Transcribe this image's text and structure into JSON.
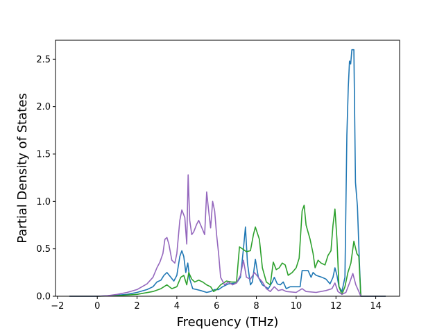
{
  "chart_data": {
    "type": "line",
    "title": "",
    "xlabel": "Frequency (THz)",
    "ylabel": "Partial Density of States",
    "xlim": [
      -2.1,
      15.2
    ],
    "ylim": [
      0,
      2.7
    ],
    "xticks": [
      -2,
      0,
      2,
      4,
      6,
      8,
      10,
      12,
      14
    ],
    "xtick_labels": [
      "−2",
      "0",
      "2",
      "4",
      "6",
      "8",
      "10",
      "12",
      "14"
    ],
    "yticks": [
      0,
      0.5,
      1.0,
      1.5,
      2.0,
      2.5
    ],
    "ytick_labels": [
      "0.0",
      "0.5",
      "1.0",
      "1.5",
      "2.0",
      "2.5"
    ],
    "grid": false,
    "legend": "none",
    "series": [
      {
        "color": "#1f77b4",
        "points": [
          [
            -1.4,
            0
          ],
          [
            -0.5,
            0
          ],
          [
            0,
            0
          ],
          [
            0.5,
            0.005
          ],
          [
            1,
            0.01
          ],
          [
            1.5,
            0.02
          ],
          [
            2,
            0.04
          ],
          [
            2.5,
            0.07
          ],
          [
            2.8,
            0.1
          ],
          [
            3,
            0.15
          ],
          [
            3.2,
            0.17
          ],
          [
            3.35,
            0.22
          ],
          [
            3.5,
            0.25
          ],
          [
            3.7,
            0.2
          ],
          [
            3.85,
            0.16
          ],
          [
            4,
            0.22
          ],
          [
            4.15,
            0.42
          ],
          [
            4.25,
            0.48
          ],
          [
            4.35,
            0.42
          ],
          [
            4.45,
            0.25
          ],
          [
            4.55,
            0.35
          ],
          [
            4.65,
            0.18
          ],
          [
            4.8,
            0.08
          ],
          [
            5,
            0.07
          ],
          [
            5.2,
            0.06
          ],
          [
            5.5,
            0.04
          ],
          [
            5.7,
            0.05
          ],
          [
            5.9,
            0.07
          ],
          [
            6.1,
            0.07
          ],
          [
            6.3,
            0.1
          ],
          [
            6.6,
            0.13
          ],
          [
            7,
            0.14
          ],
          [
            7.2,
            0.2
          ],
          [
            7.35,
            0.5
          ],
          [
            7.45,
            0.73
          ],
          [
            7.55,
            0.35
          ],
          [
            7.7,
            0.12
          ],
          [
            7.8,
            0.15
          ],
          [
            7.95,
            0.39
          ],
          [
            8.1,
            0.2
          ],
          [
            8.3,
            0.12
          ],
          [
            8.6,
            0.08
          ],
          [
            8.8,
            0.15
          ],
          [
            8.9,
            0.2
          ],
          [
            9.05,
            0.13
          ],
          [
            9.2,
            0.12
          ],
          [
            9.35,
            0.15
          ],
          [
            9.5,
            0.08
          ],
          [
            9.7,
            0.1
          ],
          [
            10.2,
            0.1
          ],
          [
            10.3,
            0.27
          ],
          [
            10.6,
            0.27
          ],
          [
            10.75,
            0.2
          ],
          [
            10.85,
            0.25
          ],
          [
            11,
            0.22
          ],
          [
            11.3,
            0.2
          ],
          [
            11.5,
            0.18
          ],
          [
            11.7,
            0.13
          ],
          [
            11.85,
            0.2
          ],
          [
            11.95,
            0.3
          ],
          [
            12.05,
            0.22
          ],
          [
            12.15,
            0.1
          ],
          [
            12.3,
            0.05
          ],
          [
            12.45,
            0.2
          ],
          [
            12.55,
            1.7
          ],
          [
            12.62,
            2.2
          ],
          [
            12.68,
            2.48
          ],
          [
            12.74,
            2.45
          ],
          [
            12.8,
            2.6
          ],
          [
            12.9,
            2.6
          ],
          [
            12.98,
            1.2
          ],
          [
            13.08,
            0.95
          ],
          [
            13.18,
            0.35
          ],
          [
            13.25,
            0
          ],
          [
            14.5,
            0
          ]
        ]
      },
      {
        "color": "#2ca02c",
        "points": [
          [
            -1.4,
            0
          ],
          [
            0,
            0
          ],
          [
            1,
            0.005
          ],
          [
            2,
            0.02
          ],
          [
            2.8,
            0.05
          ],
          [
            3.2,
            0.08
          ],
          [
            3.5,
            0.12
          ],
          [
            3.75,
            0.08
          ],
          [
            4,
            0.1
          ],
          [
            4.2,
            0.2
          ],
          [
            4.35,
            0.22
          ],
          [
            4.5,
            0.12
          ],
          [
            4.6,
            0.25
          ],
          [
            4.75,
            0.18
          ],
          [
            4.9,
            0.15
          ],
          [
            5.1,
            0.17
          ],
          [
            5.3,
            0.15
          ],
          [
            5.5,
            0.12
          ],
          [
            5.7,
            0.1
          ],
          [
            5.85,
            0.05
          ],
          [
            6,
            0.07
          ],
          [
            6.2,
            0.12
          ],
          [
            6.5,
            0.16
          ],
          [
            6.75,
            0.15
          ],
          [
            7,
            0.15
          ],
          [
            7.15,
            0.52
          ],
          [
            7.3,
            0.5
          ],
          [
            7.5,
            0.47
          ],
          [
            7.7,
            0.48
          ],
          [
            7.85,
            0.65
          ],
          [
            7.95,
            0.73
          ],
          [
            8.15,
            0.6
          ],
          [
            8.3,
            0.3
          ],
          [
            8.5,
            0.15
          ],
          [
            8.7,
            0.12
          ],
          [
            8.85,
            0.36
          ],
          [
            9,
            0.28
          ],
          [
            9.15,
            0.3
          ],
          [
            9.3,
            0.35
          ],
          [
            9.45,
            0.33
          ],
          [
            9.6,
            0.22
          ],
          [
            9.8,
            0.25
          ],
          [
            10,
            0.3
          ],
          [
            10.15,
            0.4
          ],
          [
            10.3,
            0.9
          ],
          [
            10.4,
            0.96
          ],
          [
            10.5,
            0.75
          ],
          [
            10.7,
            0.6
          ],
          [
            10.85,
            0.45
          ],
          [
            10.95,
            0.3
          ],
          [
            11.1,
            0.38
          ],
          [
            11.25,
            0.35
          ],
          [
            11.45,
            0.33
          ],
          [
            11.6,
            0.43
          ],
          [
            11.75,
            0.48
          ],
          [
            11.85,
            0.75
          ],
          [
            11.95,
            0.92
          ],
          [
            12.05,
            0.6
          ],
          [
            12.15,
            0.1
          ],
          [
            12.3,
            0.02
          ],
          [
            12.45,
            0.1
          ],
          [
            12.6,
            0.25
          ],
          [
            12.75,
            0.35
          ],
          [
            12.9,
            0.58
          ],
          [
            13.05,
            0.45
          ],
          [
            13.15,
            0.42
          ],
          [
            13.25,
            0
          ],
          [
            14.5,
            0
          ]
        ]
      },
      {
        "color": "#9467bd",
        "points": [
          [
            -1.4,
            0
          ],
          [
            0,
            0
          ],
          [
            0.5,
            0.005
          ],
          [
            1,
            0.02
          ],
          [
            1.5,
            0.04
          ],
          [
            2,
            0.07
          ],
          [
            2.5,
            0.13
          ],
          [
            2.8,
            0.2
          ],
          [
            3,
            0.3
          ],
          [
            3.15,
            0.36
          ],
          [
            3.3,
            0.45
          ],
          [
            3.4,
            0.6
          ],
          [
            3.5,
            0.62
          ],
          [
            3.6,
            0.55
          ],
          [
            3.75,
            0.38
          ],
          [
            3.9,
            0.35
          ],
          [
            4,
            0.45
          ],
          [
            4.15,
            0.8
          ],
          [
            4.25,
            0.91
          ],
          [
            4.4,
            0.83
          ],
          [
            4.5,
            0.55
          ],
          [
            4.57,
            1.28
          ],
          [
            4.65,
            0.8
          ],
          [
            4.75,
            0.65
          ],
          [
            4.85,
            0.68
          ],
          [
            5,
            0.76
          ],
          [
            5.1,
            0.8
          ],
          [
            5.2,
            0.75
          ],
          [
            5.3,
            0.7
          ],
          [
            5.4,
            0.65
          ],
          [
            5.5,
            1.1
          ],
          [
            5.6,
            0.9
          ],
          [
            5.7,
            0.72
          ],
          [
            5.8,
            1.0
          ],
          [
            5.9,
            0.9
          ],
          [
            6,
            0.65
          ],
          [
            6.1,
            0.45
          ],
          [
            6.2,
            0.2
          ],
          [
            6.4,
            0.12
          ],
          [
            6.6,
            0.15
          ],
          [
            6.8,
            0.12
          ],
          [
            7,
            0.14
          ],
          [
            7.2,
            0.22
          ],
          [
            7.35,
            0.38
          ],
          [
            7.5,
            0.2
          ],
          [
            7.7,
            0.18
          ],
          [
            7.9,
            0.25
          ],
          [
            8.1,
            0.2
          ],
          [
            8.3,
            0.15
          ],
          [
            8.5,
            0.08
          ],
          [
            8.7,
            0.05
          ],
          [
            8.9,
            0.1
          ],
          [
            9.1,
            0.06
          ],
          [
            9.3,
            0.07
          ],
          [
            9.5,
            0.05
          ],
          [
            10,
            0.04
          ],
          [
            10.3,
            0.08
          ],
          [
            10.5,
            0.05
          ],
          [
            11,
            0.04
          ],
          [
            11.5,
            0.06
          ],
          [
            11.8,
            0.08
          ],
          [
            11.95,
            0.14
          ],
          [
            12.1,
            0.05
          ],
          [
            12.3,
            0.02
          ],
          [
            12.5,
            0.04
          ],
          [
            12.7,
            0.15
          ],
          [
            12.85,
            0.24
          ],
          [
            13,
            0.12
          ],
          [
            13.15,
            0.05
          ],
          [
            13.25,
            0
          ],
          [
            14.5,
            0
          ]
        ]
      }
    ]
  }
}
